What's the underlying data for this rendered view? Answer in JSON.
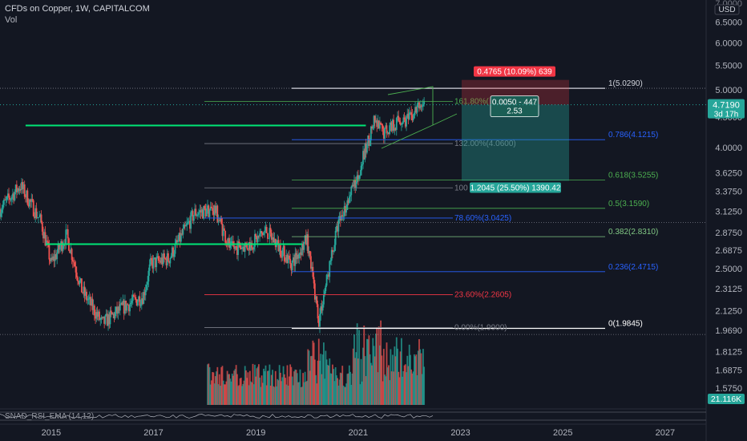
{
  "header": {
    "symbol_line": "CFDs on Copper, 1W, CAPITALCOM",
    "volume_label": "Vol"
  },
  "price_axis": {
    "currency": "USD",
    "top_label": "7.0000",
    "ticks": [
      "6.5000",
      "6.0000",
      "5.5000",
      "5.0000",
      "4.5000",
      "4.0000",
      "3.6250",
      "3.3750",
      "3.1250",
      "2.8750",
      "2.6875",
      "2.5000",
      "2.3125",
      "2.1250",
      "1.9690",
      "1.8125",
      "1.6875",
      "1.5750"
    ],
    "current_price": "4.7190",
    "countdown": "3d 17h",
    "volume_value": "21.116K"
  },
  "time_axis": {
    "labels": [
      "2015",
      "2017",
      "2019",
      "2021",
      "2023",
      "2025",
      "2027"
    ]
  },
  "indicator": {
    "label": "SNAD_RSI_EMA (14,12)"
  },
  "fib_retracement": {
    "levels": [
      {
        "label": "1(5.0290)",
        "price": 5.029,
        "color": "#d1d4dc"
      },
      {
        "label": "0.786(4.1215)",
        "price": 4.1215,
        "color": "#2962ff"
      },
      {
        "label": "0.618(3.5255)",
        "price": 3.5255,
        "color": "#4caf50"
      },
      {
        "label": "0.5(3.1590)",
        "price": 3.159,
        "color": "#4caf50"
      },
      {
        "label": "0.382(2.8310)",
        "price": 2.831,
        "color": "#81c784"
      },
      {
        "label": "0.236(2.4715)",
        "price": 2.4715,
        "color": "#2962ff"
      },
      {
        "label": "0(1.9845)",
        "price": 1.9845,
        "color": "#ffffff"
      }
    ]
  },
  "fib_extension": {
    "levels": [
      {
        "label": "161.80%(",
        "price": 4.78,
        "color": "#4caf50"
      },
      {
        "label": "132.00%(4.0600)",
        "price": 4.06,
        "color": "#787b86"
      },
      {
        "label": "100",
        "price": 3.42,
        "color": "#787b86"
      },
      {
        "label": "78.60%(3.0425)",
        "price": 3.0425,
        "color": "#2962ff"
      },
      {
        "label": "23.60%(2.2605)",
        "price": 2.2605,
        "color": "#f23645"
      },
      {
        "label": "0.00%(1.9900)",
        "price": 1.99,
        "color": "#787b86"
      }
    ]
  },
  "position_tool": {
    "stop_label": "0.4765 (10.09%) 639",
    "entry_label_1": "0.0050 - 447",
    "entry_label_2": "2.53",
    "target_label": "1.2045 (25.50%) 1390.42",
    "entry_price": 4.719,
    "stop_price": 5.1955,
    "target_price": 3.5145,
    "profit_color": "#26a69a",
    "loss_color": "#f23645"
  },
  "colors": {
    "background": "#131722",
    "up_candle": "#26a69a",
    "down_candle": "#ef5350",
    "support_line": "#00e676"
  },
  "chart_data": {
    "type": "candlestick",
    "title": "CFDs on Copper, 1W, CAPITALCOM",
    "y_scale": "log",
    "ylim": [
      1.52,
      7.0
    ],
    "xlim": [
      2014.0,
      2027.8
    ],
    "key_points": [
      {
        "x": 2014.0,
        "y": 3.15
      },
      {
        "x": 2014.4,
        "y": 3.45
      },
      {
        "x": 2014.8,
        "y": 3.0
      },
      {
        "x": 2015.0,
        "y": 2.55
      },
      {
        "x": 2015.3,
        "y": 2.85
      },
      {
        "x": 2015.6,
        "y": 2.3
      },
      {
        "x": 2016.0,
        "y": 2.02
      },
      {
        "x": 2016.4,
        "y": 2.15
      },
      {
        "x": 2016.8,
        "y": 2.25
      },
      {
        "x": 2016.95,
        "y": 2.55
      },
      {
        "x": 2017.3,
        "y": 2.6
      },
      {
        "x": 2017.8,
        "y": 3.1
      },
      {
        "x": 2018.2,
        "y": 3.15
      },
      {
        "x": 2018.5,
        "y": 2.7
      },
      {
        "x": 2018.9,
        "y": 2.75
      },
      {
        "x": 2019.2,
        "y": 2.9
      },
      {
        "x": 2019.7,
        "y": 2.55
      },
      {
        "x": 2020.0,
        "y": 2.8
      },
      {
        "x": 2020.23,
        "y": 2.05
      },
      {
        "x": 2020.6,
        "y": 2.95
      },
      {
        "x": 2021.0,
        "y": 3.6
      },
      {
        "x": 2021.3,
        "y": 4.4
      },
      {
        "x": 2021.5,
        "y": 4.25
      },
      {
        "x": 2021.8,
        "y": 4.45
      },
      {
        "x": 2022.0,
        "y": 4.45
      },
      {
        "x": 2022.2,
        "y": 4.7
      },
      {
        "x": 2022.3,
        "y": 4.75
      }
    ],
    "reference_lines": [
      {
        "type": "horizontal",
        "y": 4.355,
        "x_start": 2014.5,
        "x_end": 2021.15
      },
      {
        "type": "horizontal",
        "y": 2.75,
        "x_start": 2014.9,
        "x_end": 2019.9
      }
    ]
  }
}
